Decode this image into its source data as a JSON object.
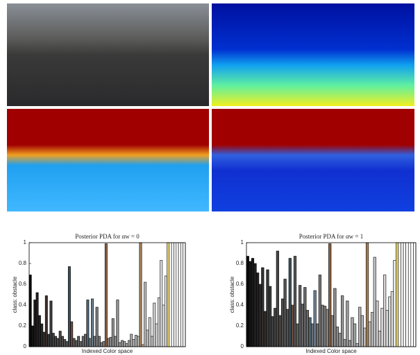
{
  "chart_data": [
    {
      "type": "bar",
      "title": "Posterior PDA for αw = 0",
      "xlabel": "Indexed Color space",
      "ylabel": "class: obstacle",
      "values": [
        0.69,
        0.2,
        0.45,
        0.52,
        0.3,
        0.22,
        0.14,
        0.49,
        0.12,
        0.44,
        0.13,
        0.1,
        0.08,
        0.15,
        0.1,
        0.07,
        0.05,
        0.77,
        0.24,
        0.08,
        0.06,
        0.1,
        0.05,
        0.1,
        0.12,
        0.45,
        0.08,
        0.46,
        0.1,
        0.38,
        0.1,
        0.04,
        0.05,
        0.99,
        0.08,
        0.09,
        0.27,
        0.1,
        0.45,
        0.04,
        0.06,
        0.05,
        0.03,
        0.06,
        0.12,
        0.07,
        0.11,
        0.1,
        1,
        0.02,
        0.62,
        0.16,
        0.28,
        0.1,
        0.42,
        0.22,
        0.47,
        0.83,
        0.4,
        0.68,
        1,
        1,
        1,
        1,
        1,
        1,
        1,
        1
      ],
      "colors": [
        "#0a0a0a",
        "#141414",
        "#1a1a1a",
        "#202020",
        "#262020",
        "#2a2a2a",
        "#303030",
        "#3a2e2a",
        "#333838",
        "#3a3a3a",
        "#404040",
        "#444444",
        "#484848",
        "#4a4440",
        "#4e4e4e",
        "#505050",
        "#545454",
        "#3d5058",
        "#6a4a3c",
        "#585858",
        "#5c5c5c",
        "#606060",
        "#646464",
        "#686868",
        "#6a6a6a",
        "#4a6470",
        "#707070",
        "#6a8090",
        "#747474",
        "#787878",
        "#7a7a7a",
        "#7e7e7e",
        "#828282",
        "#8a6040",
        "#868686",
        "#8a8a8a",
        "#8e8e8e",
        "#929292",
        "#969696",
        "#9a9a9a",
        "#9e9e9e",
        "#a2a2a2",
        "#a6a6a6",
        "#aaaaaa",
        "#aeaeae",
        "#b2b2b2",
        "#b6b6b6",
        "#bababa",
        "#a88058",
        "#bebebe",
        "#c2c2c2",
        "#c6c6c6",
        "#cacaca",
        "#cecece",
        "#d2d2d2",
        "#d6d6d6",
        "#dadada",
        "#dedede",
        "#e2e2e2",
        "#e6e6e6",
        "#e8d878",
        "#ffffff",
        "#ffffff",
        "#ffffff",
        "#ffffff",
        "#ffffff",
        "#ffffff",
        "#ffffff"
      ],
      "ylim": [
        0,
        1
      ],
      "yticks": [
        0,
        0.2,
        0.4,
        0.6,
        0.8,
        1
      ]
    },
    {
      "type": "bar",
      "title": "Posterior PDA for αw = 1",
      "xlabel": "Indexed Color space",
      "ylabel": "class: obstacle",
      "values": [
        0.87,
        0.82,
        0.85,
        0.8,
        0.71,
        0.6,
        0.76,
        0.34,
        0.74,
        0.58,
        0.29,
        0.37,
        0.92,
        0.3,
        0.46,
        0.65,
        0.36,
        0.85,
        0.4,
        0.87,
        0.22,
        0.59,
        0.41,
        0.57,
        0.35,
        0.28,
        0.22,
        0.54,
        0.22,
        0.69,
        0.4,
        0.39,
        0.36,
        0.99,
        0.3,
        0.56,
        0.19,
        0.13,
        0.49,
        0.07,
        0.44,
        0.06,
        0.28,
        0.22,
        0.03,
        0.38,
        0.3,
        0.18,
        1,
        0.24,
        0.33,
        0.86,
        0.44,
        0.15,
        0.37,
        0.69,
        0.35,
        0.48,
        0.53,
        0.83,
        1,
        1,
        1,
        1,
        1,
        1,
        1,
        1
      ],
      "colors": [
        "#0a0a0a",
        "#141414",
        "#1a1a1a",
        "#202020",
        "#262020",
        "#2a2a2a",
        "#303030",
        "#3a2e2a",
        "#333838",
        "#3a3a3a",
        "#404040",
        "#444444",
        "#484848",
        "#4a4440",
        "#4e4e4e",
        "#505050",
        "#545454",
        "#3d5058",
        "#6a4a3c",
        "#585858",
        "#5c5c5c",
        "#606060",
        "#646464",
        "#686868",
        "#6a6a6a",
        "#4a6470",
        "#707070",
        "#6a8090",
        "#747474",
        "#787878",
        "#7a7a7a",
        "#7e7e7e",
        "#828282",
        "#8a6040",
        "#868686",
        "#8a8a8a",
        "#8e8e8e",
        "#929292",
        "#969696",
        "#9a9a9a",
        "#9e9e9e",
        "#a2a2a2",
        "#a6a6a6",
        "#aaaaaa",
        "#aeaeae",
        "#b2b2b2",
        "#b6b6b6",
        "#bababa",
        "#a88058",
        "#bebebe",
        "#c2c2c2",
        "#c6c6c6",
        "#cacaca",
        "#cecece",
        "#d2d2d2",
        "#d6d6d6",
        "#dadada",
        "#dedede",
        "#e2e2e2",
        "#e6e6e6",
        "#e8d878",
        "#ffffff",
        "#ffffff",
        "#ffffff",
        "#ffffff",
        "#ffffff",
        "#ffffff",
        "#ffffff"
      ],
      "ylim": [
        0,
        1
      ],
      "yticks": [
        0,
        0.2,
        0.4,
        0.6,
        0.8,
        1
      ]
    }
  ]
}
